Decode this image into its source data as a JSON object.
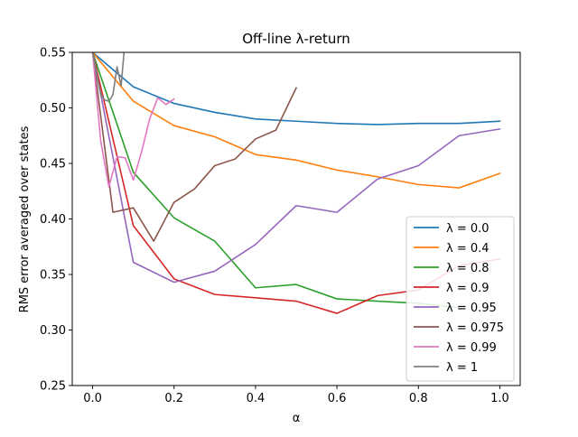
{
  "chart_data": {
    "type": "line",
    "title": "Off-line λ-return",
    "xlabel": "α",
    "ylabel": "RMS error averaged over states",
    "xlim": [
      -0.05,
      1.05
    ],
    "ylim": [
      0.25,
      0.55
    ],
    "xticks": [
      "0.0",
      "0.2",
      "0.4",
      "0.6",
      "0.8",
      "1.0"
    ],
    "yticks": [
      "0.25",
      "0.30",
      "0.35",
      "0.40",
      "0.45",
      "0.50",
      "0.55"
    ],
    "grid": false,
    "legend_position": "lower right",
    "series": [
      {
        "name": "λ = 0.0",
        "color": "#1f77b4",
        "x": [
          0,
          0.1,
          0.2,
          0.3,
          0.4,
          0.5,
          0.6,
          0.7,
          0.8,
          0.9,
          1.0
        ],
        "y": [
          0.55,
          0.519,
          0.504,
          0.496,
          0.49,
          0.488,
          0.486,
          0.485,
          0.486,
          0.486,
          0.488
        ]
      },
      {
        "name": "λ = 0.4",
        "color": "#ff7f0e",
        "x": [
          0,
          0.1,
          0.2,
          0.3,
          0.4,
          0.5,
          0.6,
          0.7,
          0.8,
          0.9,
          1.0
        ],
        "y": [
          0.55,
          0.506,
          0.484,
          0.474,
          0.458,
          0.453,
          0.444,
          0.438,
          0.431,
          0.428,
          0.441
        ]
      },
      {
        "name": "λ = 0.8",
        "color": "#2ca02c",
        "x": [
          0,
          0.1,
          0.2,
          0.3,
          0.4,
          0.5,
          0.6,
          0.7,
          0.8,
          0.9
        ],
        "y": [
          0.55,
          0.442,
          0.401,
          0.38,
          0.338,
          0.341,
          0.328,
          0.326,
          0.324,
          0.32
        ]
      },
      {
        "name": "λ = 0.9",
        "color": "#d62728",
        "x": [
          0,
          0.1,
          0.2,
          0.3,
          0.4,
          0.5,
          0.6,
          0.7,
          0.8,
          0.9,
          1.0
        ],
        "y": [
          0.55,
          0.394,
          0.346,
          0.332,
          0.329,
          0.326,
          0.315,
          0.331,
          0.336,
          0.358,
          0.364
        ]
      },
      {
        "name": "λ = 0.95",
        "color": "#9467bd",
        "x": [
          0,
          0.1,
          0.2,
          0.3,
          0.4,
          0.5,
          0.6,
          0.7,
          0.8,
          0.9,
          1.0
        ],
        "y": [
          0.55,
          0.361,
          0.343,
          0.353,
          0.377,
          0.412,
          0.406,
          0.436,
          0.448,
          0.475,
          0.481
        ]
      },
      {
        "name": "λ = 0.975",
        "color": "#8c564b",
        "x": [
          0,
          0.05,
          0.1,
          0.15,
          0.2,
          0.25,
          0.3,
          0.35,
          0.4,
          0.45,
          0.5
        ],
        "y": [
          0.55,
          0.406,
          0.41,
          0.38,
          0.415,
          0.427,
          0.448,
          0.454,
          0.472,
          0.48,
          0.518
        ]
      },
      {
        "name": "λ = 0.99",
        "color": "#e377c2",
        "x": [
          0,
          0.02,
          0.04,
          0.06,
          0.08,
          0.1,
          0.12,
          0.14,
          0.16,
          0.18,
          0.2
        ],
        "y": [
          0.55,
          0.47,
          0.429,
          0.456,
          0.455,
          0.435,
          0.46,
          0.49,
          0.509,
          0.503,
          0.508
        ]
      },
      {
        "name": "λ = 1",
        "color": "#7f7f7f",
        "x": [
          0,
          0.01,
          0.02,
          0.03,
          0.04,
          0.05,
          0.06,
          0.07,
          0.08
        ],
        "y": [
          0.55,
          0.53,
          0.512,
          0.507,
          0.506,
          0.512,
          0.537,
          0.52,
          0.562
        ]
      }
    ]
  }
}
